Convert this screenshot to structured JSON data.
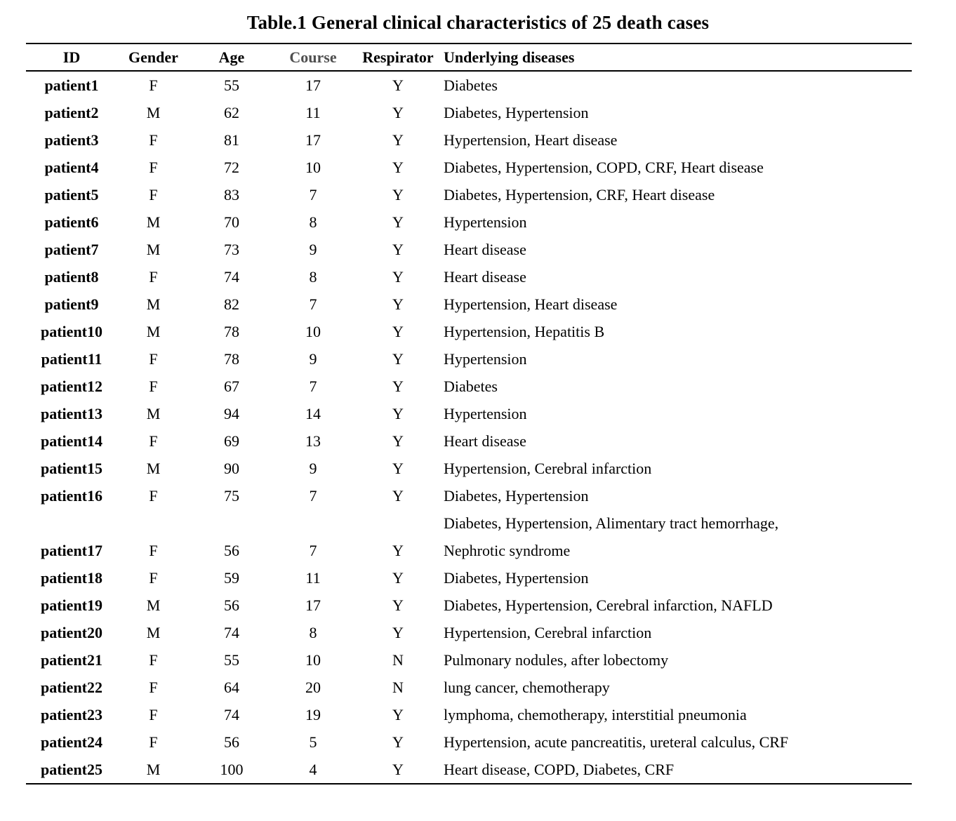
{
  "title": "Table.1 General clinical characteristics of 25 death cases",
  "colors": {
    "text": "#000000",
    "course_header": "#4f4f4f",
    "rule": "#000000"
  },
  "table": {
    "headers": [
      {
        "key": "id",
        "label": "ID"
      },
      {
        "key": "gender",
        "label": "Gender"
      },
      {
        "key": "age",
        "label": "Age"
      },
      {
        "key": "course",
        "label": "Course",
        "color": "#4f4f4f"
      },
      {
        "key": "respirator",
        "label": "Respirator"
      },
      {
        "key": "diseases",
        "label": "Underlying diseases"
      }
    ],
    "rows": [
      {
        "id": "patient1",
        "gender": "F",
        "age": "55",
        "course": "17",
        "respirator": "Y",
        "diseases": "Diabetes"
      },
      {
        "id": "patient2",
        "gender": "M",
        "age": "62",
        "course": "11",
        "respirator": "Y",
        "diseases": "Diabetes, Hypertension"
      },
      {
        "id": "patient3",
        "gender": "F",
        "age": "81",
        "course": "17",
        "respirator": "Y",
        "diseases": "Hypertension, Heart disease"
      },
      {
        "id": "patient4",
        "gender": "F",
        "age": "72",
        "course": "10",
        "respirator": "Y",
        "diseases": "Diabetes, Hypertension, COPD, CRF, Heart disease"
      },
      {
        "id": "patient5",
        "gender": "F",
        "age": "83",
        "course": "7",
        "respirator": "Y",
        "diseases": "Diabetes, Hypertension, CRF, Heart disease"
      },
      {
        "id": "patient6",
        "gender": "M",
        "age": "70",
        "course": "8",
        "respirator": "Y",
        "diseases": "Hypertension"
      },
      {
        "id": "patient7",
        "gender": "M",
        "age": "73",
        "course": "9",
        "respirator": "Y",
        "diseases": "Heart disease"
      },
      {
        "id": "patient8",
        "gender": "F",
        "age": "74",
        "course": "8",
        "respirator": "Y",
        "diseases": "Heart disease"
      },
      {
        "id": "patient9",
        "gender": "M",
        "age": "82",
        "course": "7",
        "respirator": "Y",
        "diseases": "Hypertension, Heart disease"
      },
      {
        "id": "patient10",
        "gender": "M",
        "age": "78",
        "course": "10",
        "respirator": "Y",
        "diseases": "Hypertension, Hepatitis B"
      },
      {
        "id": "patient11",
        "gender": "F",
        "age": "78",
        "course": "9",
        "respirator": "Y",
        "diseases": "Hypertension"
      },
      {
        "id": "patient12",
        "gender": "F",
        "age": "67",
        "course": "7",
        "respirator": "Y",
        "diseases": "Diabetes"
      },
      {
        "id": "patient13",
        "gender": "M",
        "age": "94",
        "course": "14",
        "respirator": "Y",
        "diseases": "Hypertension"
      },
      {
        "id": "patient14",
        "gender": "F",
        "age": "69",
        "course": "13",
        "respirator": "Y",
        "diseases": "Heart disease"
      },
      {
        "id": "patient15",
        "gender": "M",
        "age": "90",
        "course": "9",
        "respirator": "Y",
        "diseases": "Hypertension, Cerebral infarction"
      },
      {
        "id": "patient16",
        "gender": "F",
        "age": "75",
        "course": "7",
        "respirator": "Y",
        "diseases": "Diabetes, Hypertension"
      },
      {
        "id": "patient17",
        "gender": "F",
        "age": "56",
        "course": "7",
        "respirator": "Y",
        "diseases": "Diabetes, Hypertension, Alimentary tract hemorrhage,\nNephrotic syndrome"
      },
      {
        "id": "patient18",
        "gender": "F",
        "age": "59",
        "course": "11",
        "respirator": "Y",
        "diseases": "Diabetes, Hypertension"
      },
      {
        "id": "patient19",
        "gender": "M",
        "age": "56",
        "course": "17",
        "respirator": "Y",
        "diseases": "Diabetes, Hypertension, Cerebral infarction, NAFLD"
      },
      {
        "id": "patient20",
        "gender": "M",
        "age": "74",
        "course": "8",
        "respirator": "Y",
        "diseases": "Hypertension, Cerebral infarction"
      },
      {
        "id": "patient21",
        "gender": "F",
        "age": "55",
        "course": "10",
        "respirator": "N",
        "diseases": "Pulmonary nodules, after lobectomy"
      },
      {
        "id": "patient22",
        "gender": "F",
        "age": "64",
        "course": "20",
        "respirator": "N",
        "diseases": "lung cancer, chemotherapy"
      },
      {
        "id": "patient23",
        "gender": "F",
        "age": "74",
        "course": "19",
        "respirator": "Y",
        "diseases": "lymphoma, chemotherapy, interstitial pneumonia"
      },
      {
        "id": "patient24",
        "gender": "F",
        "age": "56",
        "course": "5",
        "respirator": "Y",
        "diseases": "Hypertension, acute pancreatitis, ureteral calculus, CRF"
      },
      {
        "id": "patient25",
        "gender": "M",
        "age": "100",
        "course": "4",
        "respirator": "Y",
        "diseases": "Heart disease, COPD, Diabetes, CRF"
      }
    ]
  },
  "chart_data": {
    "type": "table",
    "title": "Table.1 General clinical characteristics of 25 death cases",
    "columns": [
      "ID",
      "Gender",
      "Age",
      "Course",
      "Respirator",
      "Underlying diseases"
    ],
    "n_rows": 25
  }
}
